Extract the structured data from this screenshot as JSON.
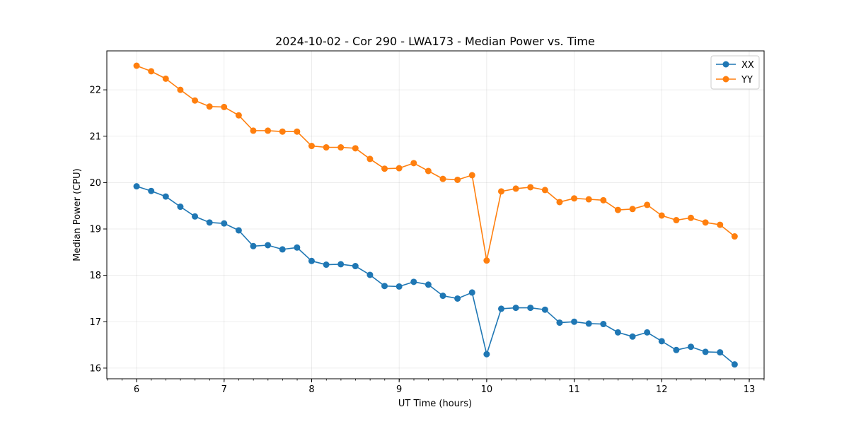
{
  "chart_data": {
    "type": "line",
    "title": "2024-10-02 - Cor 290 - LWA173 - Median Power vs. Time",
    "xlabel": "UT Time (hours)",
    "ylabel": "Median Power (CPU)",
    "xlim": [
      5.66,
      13.17
    ],
    "ylim": [
      15.77,
      22.84
    ],
    "xticks": [
      6,
      7,
      8,
      9,
      10,
      11,
      12,
      13
    ],
    "yticks": [
      16,
      17,
      18,
      19,
      20,
      21,
      22
    ],
    "x_minor_step": 0.1667,
    "grid": true,
    "legend_position": "top-right",
    "x": [
      6.0,
      6.1667,
      6.3333,
      6.5,
      6.6667,
      6.8333,
      7.0,
      7.1667,
      7.3333,
      7.5,
      7.6667,
      7.8333,
      8.0,
      8.1667,
      8.3333,
      8.5,
      8.6667,
      8.8333,
      9.0,
      9.1667,
      9.3333,
      9.5,
      9.6667,
      9.8333,
      10.0,
      10.1667,
      10.3333,
      10.5,
      10.6667,
      10.8333,
      11.0,
      11.1667,
      11.3333,
      11.5,
      11.6667,
      11.8333,
      12.0,
      12.1667,
      12.3333,
      12.5,
      12.6667,
      12.8333
    ],
    "series": [
      {
        "name": "XX",
        "color": "#1f77b4",
        "values": [
          19.92,
          19.82,
          19.7,
          19.48,
          19.27,
          19.14,
          19.12,
          18.97,
          18.63,
          18.65,
          18.56,
          18.6,
          18.31,
          18.23,
          18.24,
          18.2,
          18.01,
          17.77,
          17.76,
          17.86,
          17.8,
          17.56,
          17.5,
          17.63,
          16.3,
          17.28,
          17.3,
          17.3,
          17.26,
          16.98,
          17.0,
          16.96,
          16.95,
          16.77,
          16.68,
          16.77,
          16.58,
          16.39,
          16.46,
          16.35,
          16.34,
          16.08
        ]
      },
      {
        "name": "YY",
        "color": "#ff7f0e",
        "values": [
          22.52,
          22.4,
          22.24,
          22.0,
          21.77,
          21.64,
          21.63,
          21.45,
          21.12,
          21.12,
          21.1,
          21.1,
          20.79,
          20.76,
          20.76,
          20.74,
          20.51,
          20.3,
          20.31,
          20.42,
          20.25,
          20.08,
          20.06,
          20.16,
          18.32,
          19.81,
          19.87,
          19.9,
          19.84,
          19.58,
          19.66,
          19.64,
          19.62,
          19.41,
          19.43,
          19.52,
          19.29,
          19.19,
          19.24,
          19.14,
          19.09,
          18.84
        ]
      }
    ]
  }
}
